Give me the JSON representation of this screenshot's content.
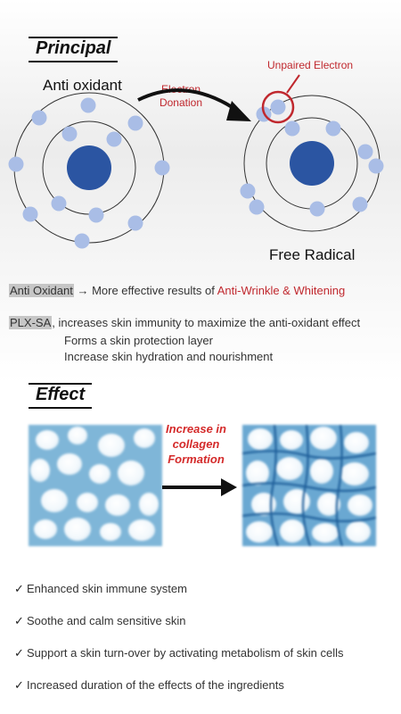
{
  "principal": {
    "title": "Principal",
    "antioxidant_label": "Anti oxidant",
    "electron_donation": "Electron Donation",
    "unpaired_electron": "Unpaired Electron",
    "free_radical_label": "Free Radical"
  },
  "statements": {
    "antioxidant_prefix": "Anti Oxidant",
    "antioxidant_text": " More effective results of ",
    "antioxidant_highlight": "Anti-Wrinkle & Whitening",
    "plx_prefix": "PLX-SA",
    "plx_line1": ", increases skin immunity to maximize the anti-oxidant effect",
    "plx_line2": "Forms a skin protection layer",
    "plx_line3": "Increase skin hydration and nourishment"
  },
  "effect": {
    "title": "Effect",
    "collagen_label": "Increase in collagen Formation"
  },
  "benefits": [
    "Enhanced skin immune system",
    "Soothe and calm sensitive skin",
    "Support a skin turn-over by activating metabolism of skin cells",
    "Increased duration of the effects of the ingredients"
  ],
  "colors": {
    "nucleus": "#2b55a2",
    "electron": "#a9bde6",
    "accent_red": "#c0282e"
  },
  "icons": {
    "arrow": "right-arrow-icon",
    "check": "check-icon"
  }
}
